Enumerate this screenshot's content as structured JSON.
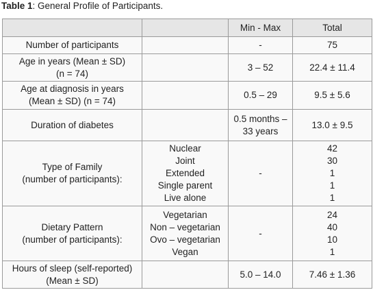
{
  "caption": {
    "label": "Table 1",
    "text": ": General Profile of Participants."
  },
  "table": {
    "header": [
      "Min - Max",
      "Total"
    ],
    "rows": [
      {
        "label": [
          "Number of participants"
        ],
        "min_max": [
          "-"
        ],
        "total": [
          "75"
        ]
      },
      {
        "label": [
          "Age in years (Mean ± SD)",
          "(n = 74)"
        ],
        "min_max": [
          "3 – 52"
        ],
        "total": [
          "22.4 ± 11.4"
        ]
      },
      {
        "label": [
          "Age at diagnosis in years",
          "(Mean ± SD) (n = 74)"
        ],
        "min_max": [
          "0.5 – 29"
        ],
        "total": [
          "9.5 ± 5.6"
        ]
      },
      {
        "label": [
          "Duration of diabetes"
        ],
        "min_max": [
          "0.5 months –",
          "33 years"
        ],
        "total": [
          "13.0 ± 9.5"
        ]
      },
      {
        "label": [
          "Type of Family",
          "(number of participants):"
        ],
        "items": [
          "Nuclear",
          "Joint",
          "Extended",
          "Single parent",
          "Live alone"
        ],
        "min_max": [
          "-"
        ],
        "total": [
          "42",
          "30",
          "1",
          "1",
          "1"
        ]
      },
      {
        "label": [
          "Dietary Pattern",
          "(number of participants):"
        ],
        "items": [
          "Vegetarian",
          "Non – vegetarian",
          "Ovo – vegetarian",
          "Vegan"
        ],
        "min_max": [
          "-"
        ],
        "total": [
          "24",
          "40",
          "10",
          "1"
        ]
      },
      {
        "label": [
          "Hours of sleep (self-reported)",
          "(Mean ± SD)"
        ],
        "min_max": [
          "5.0 – 14.0"
        ],
        "total": [
          "7.46 ± 1.36"
        ]
      }
    ]
  }
}
